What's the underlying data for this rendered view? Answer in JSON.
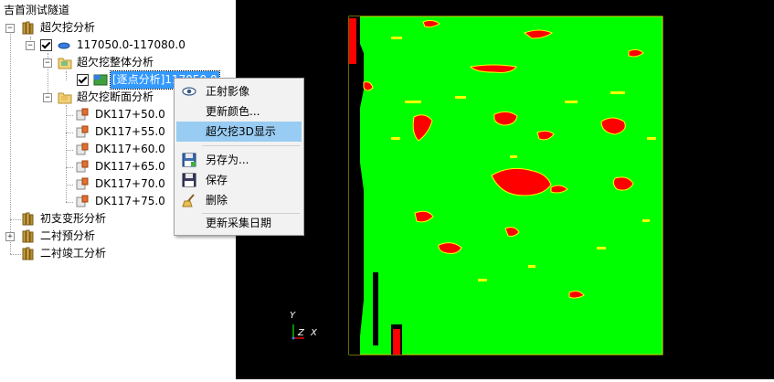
{
  "tree": {
    "title": "吉首测试隧道",
    "root_label": "超欠挖分析",
    "range_label": "117050.0-117080.0",
    "overall_label": "超欠挖整体分析",
    "selected_label": "[逐点分析]117050.0",
    "section_label": "超欠挖断面分析",
    "sections": [
      "DK117+50.0",
      "DK117+55.0",
      "DK117+60.0",
      "DK117+65.0",
      "DK117+70.0",
      "DK117+75.0"
    ],
    "deform_label": "初支变形分析",
    "lining_label": "二衬预分析",
    "completion_label": "二衬竣工分析"
  },
  "context_menu": {
    "items": [
      "正射影像",
      "更新颜色...",
      "超欠挖3D显示",
      "另存为...",
      "保存",
      "删除",
      "更新采集日期"
    ]
  },
  "viewer": {
    "axis_y": "Y",
    "axis_z": "Z",
    "axis_x": "X",
    "colors": {
      "background": "#000000",
      "ok": "#00ff00",
      "over": "#ff0000",
      "under": "#ffff00"
    }
  },
  "colors": {
    "selection": "#3399ff",
    "menu_hover": "#99ccf2"
  }
}
